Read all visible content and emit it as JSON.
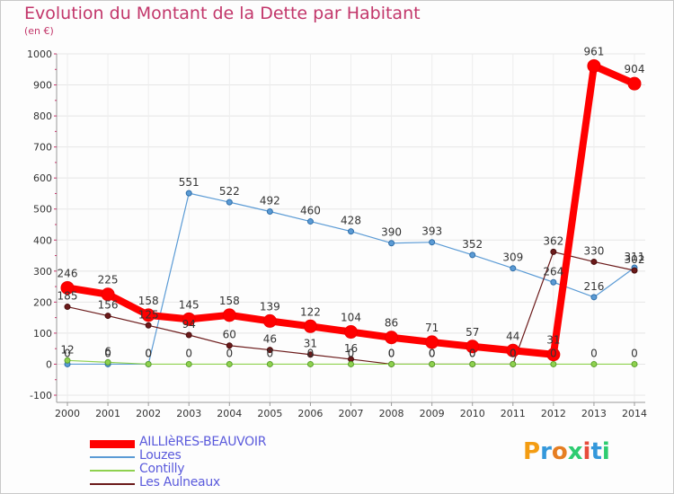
{
  "title": "Evolution du Montant de la Dette par Habitant",
  "subtitle": "(en €)",
  "brand": {
    "text": "Proxiti",
    "colors": [
      "#f39c12",
      "#3498db",
      "#e67e22",
      "#2ecc71",
      "#e74c3c",
      "#3498db",
      "#2ecc71"
    ]
  },
  "chart_data": {
    "type": "line",
    "title": "Evolution du Montant de la Dette par Habitant",
    "subtitle": "(en €)",
    "xlabel": "",
    "ylabel": "",
    "x": [
      "2000",
      "2001",
      "2002",
      "2003",
      "2004",
      "2005",
      "2006",
      "2007",
      "2008",
      "2009",
      "2010",
      "2011",
      "2012",
      "2013",
      "2014"
    ],
    "ylim": [
      -100,
      1000
    ],
    "yticks": [
      -100,
      0,
      100,
      200,
      300,
      400,
      500,
      600,
      700,
      800,
      900,
      1000
    ],
    "grid": true,
    "legend_position": "bottom-left",
    "series": [
      {
        "name": "AILLIèRES-BEAUVOIR",
        "color": "#ff0000",
        "width": 8,
        "marker": 7,
        "values": [
          246,
          225,
          158,
          145,
          158,
          139,
          122,
          104,
          86,
          71,
          57,
          44,
          31,
          961,
          904
        ],
        "labels": [
          "246",
          "225",
          "158",
          "145",
          "158",
          "139",
          "122",
          "104",
          "86",
          "71",
          "57",
          "44",
          "31",
          "961",
          "904"
        ]
      },
      {
        "name": "Louzes",
        "color": "#5b9bd5",
        "width": 1.2,
        "marker": 3,
        "values": [
          0,
          0,
          0,
          551,
          522,
          492,
          460,
          428,
          390,
          393,
          352,
          309,
          264,
          216,
          311
        ],
        "labels": [
          "0",
          "0",
          "0",
          "551",
          "522",
          "492",
          "460",
          "428",
          "390",
          "393",
          "352",
          "309",
          "264",
          "216",
          "311"
        ]
      },
      {
        "name": "Contilly",
        "color": "#8fd14f",
        "width": 1.2,
        "marker": 3,
        "values": [
          12,
          6,
          0,
          0,
          0,
          0,
          0,
          0,
          0,
          0,
          0,
          0,
          0,
          0,
          0
        ],
        "labels": [
          "12",
          "6",
          "0",
          "0",
          "0",
          "0",
          "0",
          "0",
          "0",
          "0",
          "0",
          "0",
          "0",
          "0",
          "0"
        ]
      },
      {
        "name": "Les Aulneaux",
        "color": "#6b1a1a",
        "width": 1.2,
        "marker": 3,
        "values": [
          185,
          156,
          125,
          94,
          60,
          46,
          31,
          16,
          0,
          0,
          0,
          0,
          362,
          330,
          302
        ],
        "labels": [
          "185",
          "156",
          "125",
          "94",
          "60",
          "46",
          "31",
          "16",
          "0",
          "0",
          "0",
          "0",
          "362",
          "330",
          "302"
        ]
      }
    ]
  }
}
